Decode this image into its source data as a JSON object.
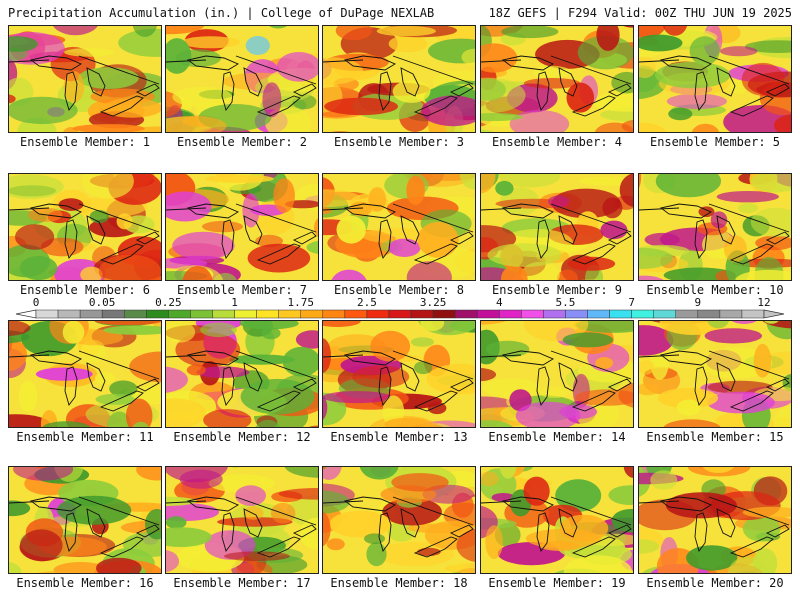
{
  "header": {
    "left": "Precipitation Accumulation (in.) | College of DuPage NEXLAB",
    "right": "18Z GEFS | F294 Valid: 00Z THU JUN 19 2025"
  },
  "member_label_prefix": "Ensemble Member: ",
  "members": [
    {
      "number": "1"
    },
    {
      "number": "2"
    },
    {
      "number": "3"
    },
    {
      "number": "4"
    },
    {
      "number": "5"
    },
    {
      "number": "6"
    },
    {
      "number": "7"
    },
    {
      "number": "8"
    },
    {
      "number": "9"
    },
    {
      "number": "10"
    },
    {
      "number": "11"
    },
    {
      "number": "12"
    },
    {
      "number": "13"
    },
    {
      "number": "14"
    },
    {
      "number": "15"
    },
    {
      "number": "16"
    },
    {
      "number": "17"
    },
    {
      "number": "18"
    },
    {
      "number": "19"
    },
    {
      "number": "20"
    }
  ],
  "colorbar": {
    "tick_labels": [
      "0",
      "0.05",
      "0.25",
      "1",
      "1.75",
      "2.5",
      "3.25",
      "4",
      "5.5",
      "7",
      "9",
      "12"
    ],
    "colors": [
      "#d8d8d8",
      "#b8b8b8",
      "#989898",
      "#787878",
      "#5a8a4a",
      "#2e8b1e",
      "#4ea82a",
      "#7cc236",
      "#b8dc3a",
      "#eef032",
      "#ffe426",
      "#ffc820",
      "#ffa818",
      "#ff8612",
      "#ff5a10",
      "#f02c10",
      "#d81818",
      "#b41414",
      "#901010",
      "#a0106a",
      "#c2109a",
      "#e024c8",
      "#f050e8",
      "#b070f0",
      "#8890f8",
      "#60b8f8",
      "#38e0f0",
      "#40f0e0",
      "#60d8d8",
      "#9a9a9a",
      "#888888",
      "#a8a8a8",
      "#c4c4c4"
    ]
  }
}
